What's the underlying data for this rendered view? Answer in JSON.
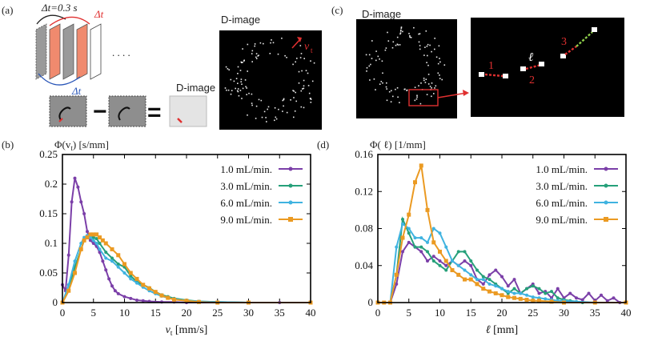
{
  "panels": {
    "a": {
      "label": "(a)",
      "dt_label": "Δt=0.3 s",
      "dt_red": "Δt",
      "dt_blue": "Δt",
      "ellipsis": ". . . .",
      "minus": "−",
      "equals": "=",
      "d_image_label": "D-image"
    },
    "a_right": {
      "vt_label": "v",
      "vt_sub": "t"
    },
    "c": {
      "label": "(c)",
      "d_image_label": "D-image",
      "ell_label": "ℓ",
      "markers": [
        "1",
        "2",
        "3"
      ]
    }
  },
  "colors": {
    "s1": "#7b3fa8",
    "s2": "#26a07a",
    "s3": "#3fb3e0",
    "s4": "#eb9a22",
    "accent_red": "#e03030",
    "accent_blue": "#2a56b8",
    "salmon": "#f08a6e",
    "gray_frame": "#8a8a8a"
  },
  "chart_data": [
    {
      "type": "line",
      "panel_label": "(b)",
      "ylabel_text": "Φ(v",
      "ylabel_sub": "t",
      "ylabel_unit": ") [s/mm]",
      "xlabel_text": "v",
      "xlabel_sub": "t",
      "xlabel_unit": " [mm/s]",
      "xlim": [
        0,
        40
      ],
      "ylim": [
        0,
        0.25
      ],
      "xticks": [
        "0",
        "5",
        "10",
        "15",
        "20",
        "25",
        "30",
        "35",
        "40"
      ],
      "yticks": [
        "0",
        "0.05",
        "0.1",
        "0.15",
        "0.2",
        "0.25"
      ],
      "legend_position": "top-right",
      "series": [
        {
          "name": "1.0 mL/min.",
          "marker": "circle",
          "points": [
            [
              0,
              0.03
            ],
            [
              0.5,
              0.02
            ],
            [
              1,
              0.08
            ],
            [
              1.5,
              0.17
            ],
            [
              2,
              0.21
            ],
            [
              2.5,
              0.195
            ],
            [
              3,
              0.17
            ],
            [
              3.5,
              0.15
            ],
            [
              4,
              0.12
            ],
            [
              4.5,
              0.105
            ],
            [
              5,
              0.1
            ],
            [
              5.5,
              0.095
            ],
            [
              6,
              0.085
            ],
            [
              6.5,
              0.07
            ],
            [
              7,
              0.055
            ],
            [
              7.5,
              0.04
            ],
            [
              8,
              0.028
            ],
            [
              8.5,
              0.02
            ],
            [
              9,
              0.015
            ],
            [
              10,
              0.01
            ],
            [
              11,
              0.007
            ],
            [
              12,
              0.004
            ],
            [
              13,
              0.003
            ],
            [
              14,
              0.002
            ],
            [
              16,
              0.001
            ],
            [
              18,
              0.001
            ],
            [
              20,
              0.0
            ],
            [
              25,
              0.0
            ],
            [
              30,
              0.0
            ],
            [
              35,
              0.0
            ],
            [
              40,
              0.0
            ]
          ]
        },
        {
          "name": "3.0 mL/min.",
          "marker": "circle",
          "points": [
            [
              0,
              0.0
            ],
            [
              1,
              0.02
            ],
            [
              2,
              0.06
            ],
            [
              3,
              0.09
            ],
            [
              3.5,
              0.105
            ],
            [
              4,
              0.113
            ],
            [
              4.5,
              0.112
            ],
            [
              5,
              0.11
            ],
            [
              5.5,
              0.108
            ],
            [
              6,
              0.1
            ],
            [
              7,
              0.085
            ],
            [
              8,
              0.075
            ],
            [
              9,
              0.065
            ],
            [
              10,
              0.06
            ],
            [
              11,
              0.045
            ],
            [
              12,
              0.035
            ],
            [
              13,
              0.03
            ],
            [
              14,
              0.025
            ],
            [
              15,
              0.018
            ],
            [
              16,
              0.013
            ],
            [
              17,
              0.01
            ],
            [
              18,
              0.007
            ],
            [
              20,
              0.004
            ],
            [
              22,
              0.002
            ],
            [
              25,
              0.001
            ],
            [
              30,
              0.0
            ],
            [
              40,
              0.0
            ]
          ]
        },
        {
          "name": "6.0 mL/min.",
          "marker": "circle",
          "points": [
            [
              0,
              0.0
            ],
            [
              1,
              0.03
            ],
            [
              2,
              0.07
            ],
            [
              3,
              0.1
            ],
            [
              3.5,
              0.11
            ],
            [
              4,
              0.113
            ],
            [
              4.5,
              0.11
            ],
            [
              5,
              0.105
            ],
            [
              5.5,
              0.1
            ],
            [
              6,
              0.09
            ],
            [
              7,
              0.075
            ],
            [
              8,
              0.07
            ],
            [
              9,
              0.06
            ],
            [
              10,
              0.05
            ],
            [
              11,
              0.04
            ],
            [
              12,
              0.033
            ],
            [
              13,
              0.026
            ],
            [
              14,
              0.02
            ],
            [
              15,
              0.015
            ],
            [
              16,
              0.011
            ],
            [
              17,
              0.008
            ],
            [
              18,
              0.006
            ],
            [
              20,
              0.003
            ],
            [
              22,
              0.002
            ],
            [
              25,
              0.001
            ],
            [
              30,
              0.0
            ],
            [
              40,
              0.0
            ]
          ]
        },
        {
          "name": "9.0 mL/min.",
          "marker": "square",
          "points": [
            [
              0,
              0.0
            ],
            [
              1,
              0.02
            ],
            [
              2,
              0.05
            ],
            [
              3,
              0.09
            ],
            [
              3.5,
              0.105
            ],
            [
              4,
              0.11
            ],
            [
              4.5,
              0.115
            ],
            [
              5,
              0.115
            ],
            [
              5.5,
              0.115
            ],
            [
              6,
              0.11
            ],
            [
              6.5,
              0.105
            ],
            [
              7,
              0.1
            ],
            [
              8,
              0.09
            ],
            [
              9,
              0.08
            ],
            [
              10,
              0.065
            ],
            [
              11,
              0.05
            ],
            [
              12,
              0.04
            ],
            [
              13,
              0.03
            ],
            [
              14,
              0.024
            ],
            [
              15,
              0.018
            ],
            [
              16,
              0.012
            ],
            [
              17,
              0.008
            ],
            [
              18,
              0.005
            ],
            [
              20,
              0.003
            ],
            [
              22,
              0.001
            ],
            [
              25,
              0.0
            ],
            [
              30,
              0.0
            ],
            [
              40,
              0.0
            ]
          ]
        }
      ]
    },
    {
      "type": "line",
      "panel_label": "(d)",
      "ylabel_text": "Φ( ℓ)",
      "ylabel_unit": " [1/mm]",
      "xlabel_text": "ℓ",
      "xlabel_unit": " [mm]",
      "xlim": [
        0,
        40
      ],
      "ylim": [
        0,
        0.16
      ],
      "xticks": [
        "0",
        "5",
        "10",
        "15",
        "20",
        "25",
        "30",
        "35",
        "40"
      ],
      "yticks": [
        "0",
        "0.04",
        "0.08",
        "0.12",
        "0.16"
      ],
      "legend_position": "top-right",
      "series": [
        {
          "name": "1.0 mL/min.",
          "marker": "circle",
          "points": [
            [
              0,
              0.0
            ],
            [
              1,
              0.0
            ],
            [
              2,
              0.0
            ],
            [
              3,
              0.02
            ],
            [
              4,
              0.055
            ],
            [
              5,
              0.065
            ],
            [
              6,
              0.06
            ],
            [
              7,
              0.055
            ],
            [
              8,
              0.045
            ],
            [
              9,
              0.05
            ],
            [
              10,
              0.045
            ],
            [
              11,
              0.04
            ],
            [
              12,
              0.045
            ],
            [
              13,
              0.04
            ],
            [
              14,
              0.045
            ],
            [
              15,
              0.04
            ],
            [
              16,
              0.025
            ],
            [
              17,
              0.02
            ],
            [
              18,
              0.03
            ],
            [
              19,
              0.035
            ],
            [
              20,
              0.028
            ],
            [
              21,
              0.018
            ],
            [
              22,
              0.025
            ],
            [
              23,
              0.01
            ],
            [
              24,
              0.015
            ],
            [
              25,
              0.02
            ],
            [
              26,
              0.01
            ],
            [
              27,
              0.012
            ],
            [
              28,
              0.005
            ],
            [
              29,
              0.015
            ],
            [
              30,
              0.005
            ],
            [
              31,
              0.01
            ],
            [
              32,
              0.005
            ],
            [
              33,
              0.003
            ],
            [
              34,
              0.01
            ],
            [
              35,
              0.002
            ],
            [
              36,
              0.008
            ],
            [
              37,
              0.002
            ],
            [
              38,
              0.005
            ],
            [
              39,
              0.0
            ],
            [
              40,
              0.0
            ]
          ]
        },
        {
          "name": "3.0 mL/min.",
          "marker": "circle",
          "points": [
            [
              0,
              0.0
            ],
            [
              1,
              0.0
            ],
            [
              2,
              0.0
            ],
            [
              3,
              0.03
            ],
            [
              4,
              0.09
            ],
            [
              5,
              0.075
            ],
            [
              6,
              0.06
            ],
            [
              7,
              0.06
            ],
            [
              8,
              0.055
            ],
            [
              9,
              0.045
            ],
            [
              10,
              0.04
            ],
            [
              11,
              0.035
            ],
            [
              12,
              0.045
            ],
            [
              13,
              0.055
            ],
            [
              14,
              0.055
            ],
            [
              15,
              0.045
            ],
            [
              16,
              0.035
            ],
            [
              17,
              0.028
            ],
            [
              18,
              0.025
            ],
            [
              19,
              0.02
            ],
            [
              20,
              0.015
            ],
            [
              21,
              0.01
            ],
            [
              22,
              0.015
            ],
            [
              23,
              0.01
            ],
            [
              24,
              0.015
            ],
            [
              25,
              0.018
            ],
            [
              26,
              0.015
            ],
            [
              27,
              0.01
            ],
            [
              28,
              0.012
            ],
            [
              29,
              0.005
            ],
            [
              30,
              0.003
            ],
            [
              31,
              0.002
            ],
            [
              32,
              0.001
            ],
            [
              33,
              0.0
            ],
            [
              35,
              0.0
            ],
            [
              40,
              0.0
            ]
          ]
        },
        {
          "name": "6.0 mL/min.",
          "marker": "circle",
          "points": [
            [
              0,
              0.0
            ],
            [
              1,
              0.0
            ],
            [
              2,
              0.0
            ],
            [
              3,
              0.06
            ],
            [
              4,
              0.085
            ],
            [
              5,
              0.08
            ],
            [
              6,
              0.07
            ],
            [
              7,
              0.07
            ],
            [
              8,
              0.065
            ],
            [
              9,
              0.08
            ],
            [
              10,
              0.075
            ],
            [
              11,
              0.06
            ],
            [
              12,
              0.045
            ],
            [
              13,
              0.04
            ],
            [
              14,
              0.035
            ],
            [
              15,
              0.03
            ],
            [
              16,
              0.025
            ],
            [
              17,
              0.025
            ],
            [
              18,
              0.02
            ],
            [
              19,
              0.018
            ],
            [
              20,
              0.015
            ],
            [
              21,
              0.012
            ],
            [
              22,
              0.01
            ],
            [
              23,
              0.01
            ],
            [
              24,
              0.008
            ],
            [
              25,
              0.006
            ],
            [
              26,
              0.005
            ],
            [
              27,
              0.004
            ],
            [
              28,
              0.003
            ],
            [
              29,
              0.002
            ],
            [
              30,
              0.002
            ],
            [
              32,
              0.001
            ],
            [
              35,
              0.0
            ],
            [
              40,
              0.0
            ]
          ]
        },
        {
          "name": "9.0 mL/min.",
          "marker": "square",
          "points": [
            [
              0,
              0.0
            ],
            [
              1,
              0.0
            ],
            [
              2,
              0.0
            ],
            [
              3,
              0.03
            ],
            [
              4,
              0.07
            ],
            [
              5,
              0.095
            ],
            [
              6,
              0.13
            ],
            [
              7,
              0.148
            ],
            [
              8,
              0.1
            ],
            [
              9,
              0.065
            ],
            [
              10,
              0.055
            ],
            [
              11,
              0.045
            ],
            [
              12,
              0.035
            ],
            [
              13,
              0.03
            ],
            [
              14,
              0.025
            ],
            [
              15,
              0.025
            ],
            [
              16,
              0.02
            ],
            [
              17,
              0.015
            ],
            [
              18,
              0.012
            ],
            [
              19,
              0.01
            ],
            [
              20,
              0.008
            ],
            [
              21,
              0.006
            ],
            [
              22,
              0.005
            ],
            [
              23,
              0.004
            ],
            [
              24,
              0.003
            ],
            [
              25,
              0.002
            ],
            [
              26,
              0.002
            ],
            [
              28,
              0.001
            ],
            [
              30,
              0.0
            ],
            [
              35,
              0.0
            ],
            [
              40,
              0.0
            ]
          ]
        }
      ]
    }
  ]
}
